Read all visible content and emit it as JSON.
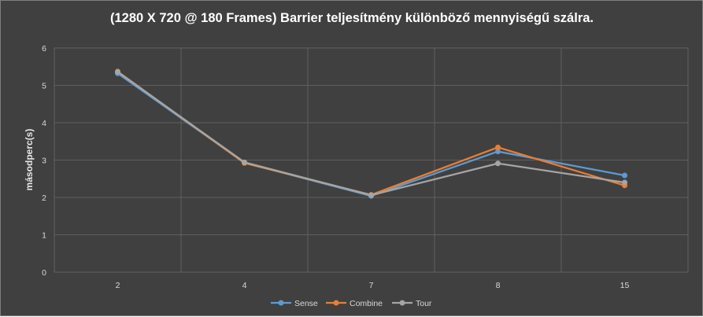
{
  "chart_data": {
    "type": "line",
    "title": "(1280 X 720 @ 180 Frames) Barrier teljesítmény különböző mennyiségű szálra.",
    "xlabel": "",
    "ylabel": "másodperc(s)",
    "categories": [
      "2",
      "4",
      "7",
      "8",
      "15"
    ],
    "ylim": [
      0,
      6
    ],
    "yticks": [
      0,
      1,
      2,
      3,
      4,
      5,
      6
    ],
    "grid": true,
    "legend_position": "bottom",
    "series": [
      {
        "name": "Sense",
        "color": "#5b9bd5",
        "values": [
          5.32,
          2.93,
          2.04,
          3.23,
          2.59
        ]
      },
      {
        "name": "Combine",
        "color": "#ed7d31",
        "values": [
          5.37,
          2.92,
          2.07,
          3.34,
          2.32
        ]
      },
      {
        "name": "Tour",
        "color": "#a5a5a5",
        "values": [
          5.36,
          2.94,
          2.06,
          2.91,
          2.4
        ]
      }
    ]
  }
}
